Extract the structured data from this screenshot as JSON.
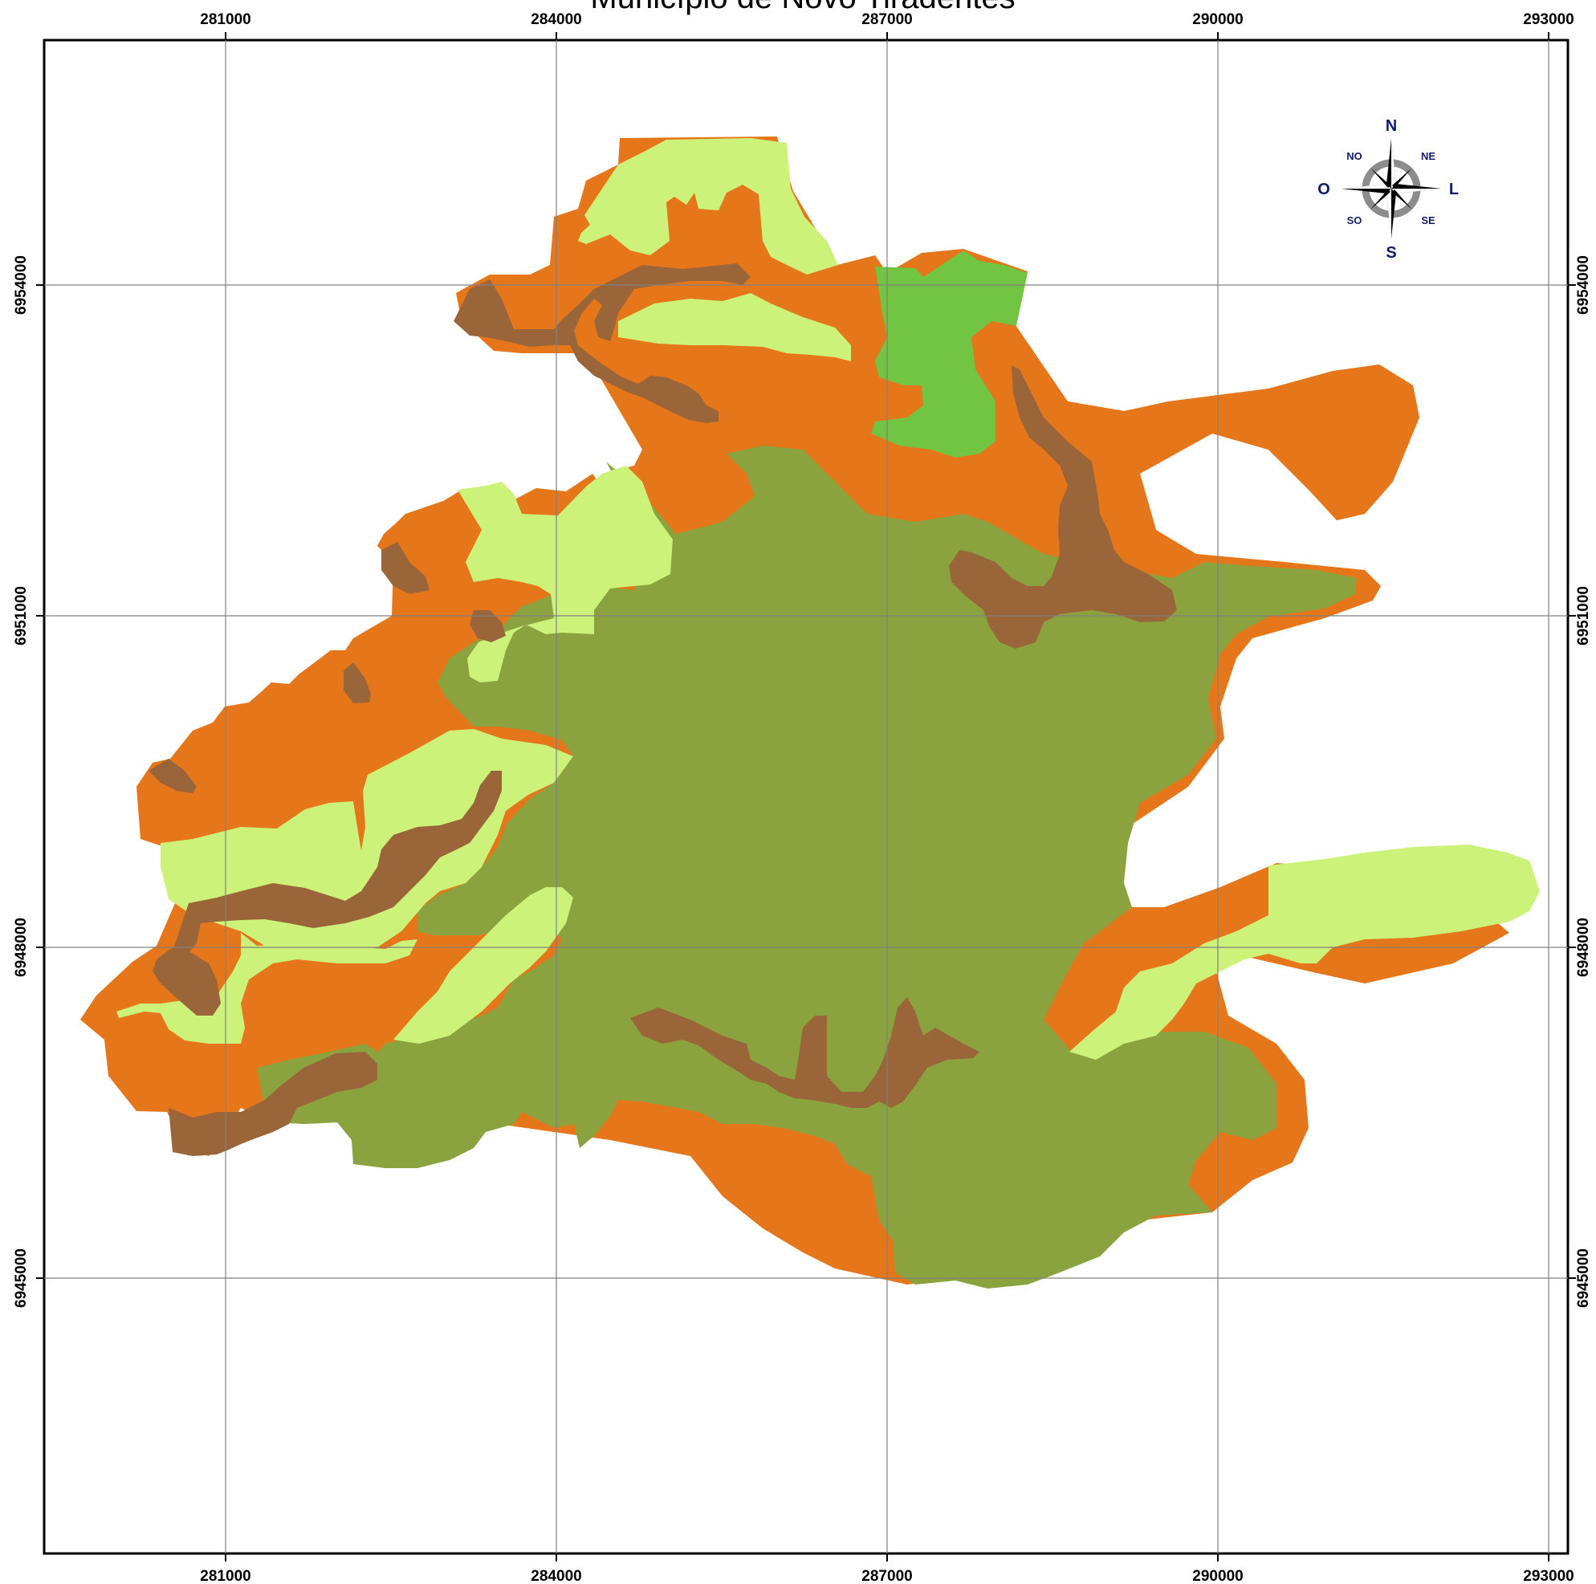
{
  "map": {
    "title": "Município de Novo Tiradentes",
    "x_ticks": [
      "281000",
      "284000",
      "287000",
      "290000",
      "293000"
    ],
    "y_ticks": [
      "6954000",
      "6951000",
      "6948000",
      "6945000"
    ],
    "compass": {
      "north": "N",
      "south": "S",
      "east": "L",
      "west": "O",
      "northeast": "NE",
      "northwest": "NO",
      "southeast": "SE",
      "southwest": "SO"
    },
    "colors": {
      "olive": "#8aa33f",
      "orange": "#e6761a",
      "light_green": "#ccf27a",
      "brown": "#9a6639",
      "green": "#72c443",
      "grid": "#808080",
      "frame": "#000000",
      "compass_text": "#0f1d6b"
    }
  }
}
